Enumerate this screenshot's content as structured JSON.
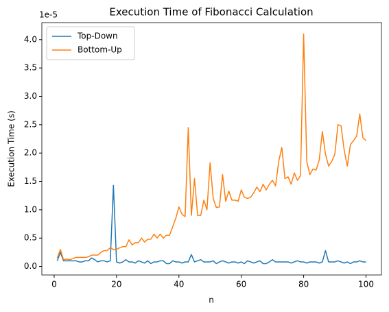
{
  "chart_data": {
    "type": "line",
    "title": "Execution Time of Fibonacci Calculation",
    "x_label": "n",
    "y_label": "Execution Time (s)",
    "y_offset_label": "1e-5",
    "x": [
      1,
      2,
      3,
      4,
      5,
      6,
      7,
      8,
      9,
      10,
      11,
      12,
      13,
      14,
      15,
      16,
      17,
      18,
      19,
      20,
      21,
      22,
      23,
      24,
      25,
      26,
      27,
      28,
      29,
      30,
      31,
      32,
      33,
      34,
      35,
      36,
      37,
      38,
      39,
      40,
      41,
      42,
      43,
      44,
      45,
      46,
      47,
      48,
      49,
      50,
      51,
      52,
      53,
      54,
      55,
      56,
      57,
      58,
      59,
      60,
      61,
      62,
      63,
      64,
      65,
      66,
      67,
      68,
      69,
      70,
      71,
      72,
      73,
      74,
      75,
      76,
      77,
      78,
      79,
      80,
      81,
      82,
      83,
      84,
      85,
      86,
      87,
      88,
      89,
      90,
      91,
      92,
      93,
      94,
      95,
      96,
      97,
      98,
      99,
      100
    ],
    "series": [
      {
        "name": "Top-Down",
        "color": "#1f77b4",
        "values": [
          0.1,
          0.25,
          0.1,
          0.1,
          0.1,
          0.1,
          0.1,
          0.08,
          0.08,
          0.1,
          0.1,
          0.15,
          0.12,
          0.08,
          0.1,
          0.1,
          0.08,
          0.1,
          1.43,
          0.08,
          0.06,
          0.08,
          0.12,
          0.08,
          0.08,
          0.06,
          0.1,
          0.08,
          0.06,
          0.1,
          0.05,
          0.08,
          0.08,
          0.1,
          0.1,
          0.05,
          0.05,
          0.1,
          0.08,
          0.08,
          0.06,
          0.08,
          0.08,
          0.21,
          0.08,
          0.1,
          0.12,
          0.08,
          0.08,
          0.08,
          0.1,
          0.05,
          0.08,
          0.1,
          0.08,
          0.06,
          0.08,
          0.08,
          0.06,
          0.08,
          0.05,
          0.1,
          0.08,
          0.06,
          0.08,
          0.1,
          0.05,
          0.05,
          0.08,
          0.12,
          0.08,
          0.08,
          0.08,
          0.08,
          0.08,
          0.06,
          0.08,
          0.1,
          0.08,
          0.08,
          0.06,
          0.08,
          0.08,
          0.08,
          0.06,
          0.08,
          0.28,
          0.08,
          0.08,
          0.08,
          0.1,
          0.08,
          0.06,
          0.08,
          0.05,
          0.08,
          0.08,
          0.1,
          0.08,
          0.08
        ]
      },
      {
        "name": "Bottom-Up",
        "color": "#ff7f0e",
        "values": [
          0.15,
          0.3,
          0.12,
          0.13,
          0.12,
          0.14,
          0.16,
          0.16,
          0.16,
          0.16,
          0.17,
          0.2,
          0.2,
          0.2,
          0.25,
          0.28,
          0.28,
          0.33,
          0.3,
          0.3,
          0.33,
          0.35,
          0.35,
          0.47,
          0.38,
          0.42,
          0.42,
          0.5,
          0.43,
          0.48,
          0.48,
          0.57,
          0.5,
          0.57,
          0.5,
          0.55,
          0.55,
          0.7,
          0.85,
          1.05,
          0.92,
          0.88,
          2.45,
          0.9,
          1.55,
          0.9,
          0.9,
          1.17,
          1.0,
          1.83,
          1.2,
          1.04,
          1.05,
          1.62,
          1.15,
          1.33,
          1.17,
          1.17,
          1.15,
          1.35,
          1.22,
          1.2,
          1.22,
          1.3,
          1.4,
          1.32,
          1.45,
          1.35,
          1.45,
          1.52,
          1.42,
          1.85,
          2.1,
          1.55,
          1.58,
          1.45,
          1.65,
          1.52,
          1.6,
          4.1,
          1.85,
          1.62,
          1.72,
          1.7,
          1.88,
          2.38,
          1.98,
          1.77,
          1.85,
          1.98,
          2.5,
          2.48,
          2.05,
          1.77,
          2.15,
          2.22,
          2.3,
          2.69,
          2.27,
          2.22
        ]
      }
    ],
    "xlim": [
      -3.95,
      104.95
    ],
    "xticks": [
      0,
      20,
      40,
      60,
      80,
      100
    ],
    "ylim": [
      -0.15,
      4.3
    ],
    "yticks": [
      {
        "value": 0,
        "label": "0.0"
      },
      0.5,
      {
        "value": 1,
        "label": "1.0"
      },
      1.5,
      {
        "value": 2,
        "label": "2.0"
      },
      2.5,
      {
        "value": 3,
        "label": "3.0"
      },
      3.5,
      {
        "value": 4,
        "label": "4.0"
      }
    ],
    "legend": "upper left",
    "grid": false
  }
}
